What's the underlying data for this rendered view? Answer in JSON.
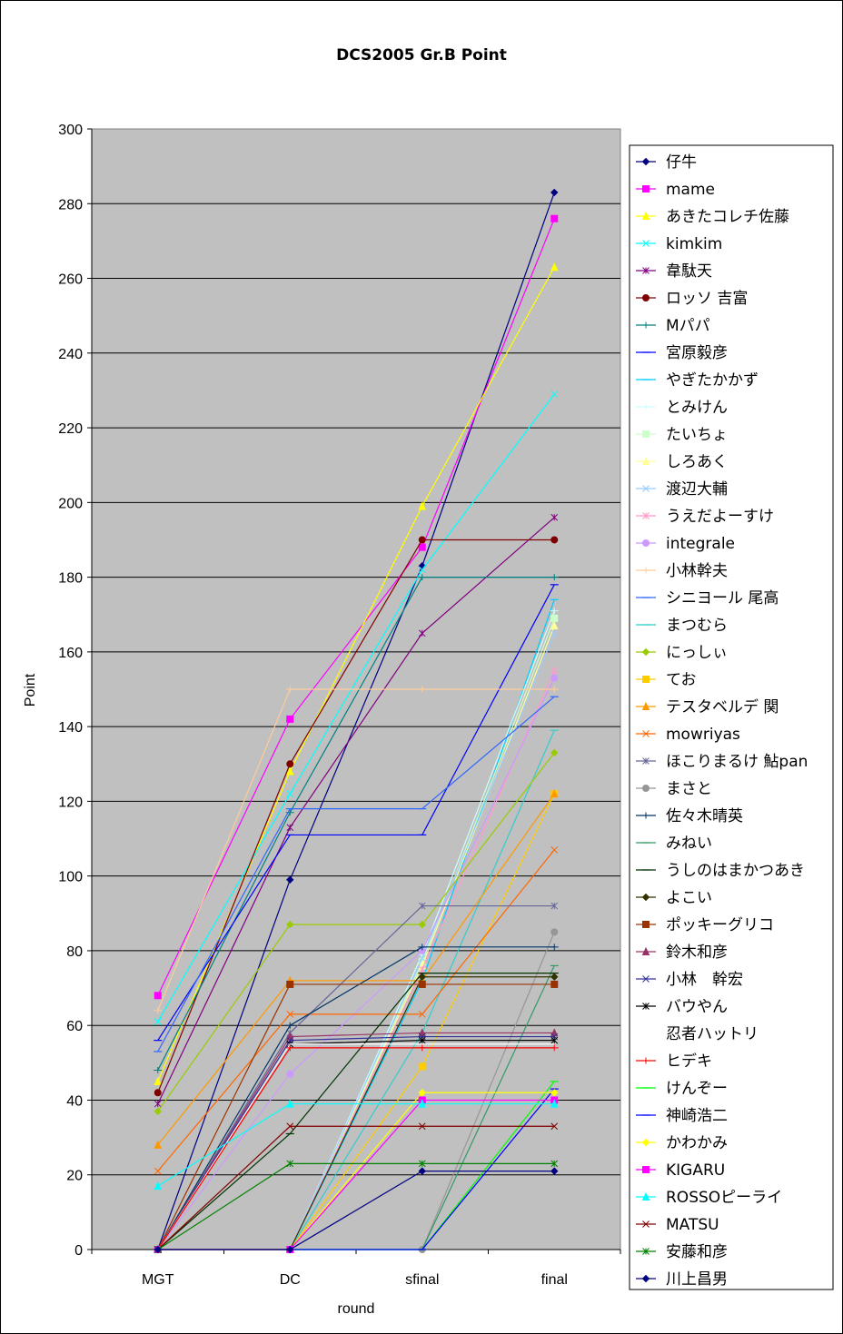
{
  "chart_data": {
    "type": "line",
    "title": "DCS2005 Gr.B Point",
    "xlabel": "round",
    "ylabel": "Point",
    "categories": [
      "MGT",
      "DC",
      "sfinal",
      "final"
    ],
    "ylim": [
      0,
      300
    ],
    "yticks": [
      0,
      20,
      40,
      60,
      80,
      100,
      120,
      140,
      160,
      180,
      200,
      220,
      240,
      260,
      280,
      300
    ],
    "grid": true,
    "legend_position": "right",
    "plot_background": "#c0c0c0",
    "series": [
      {
        "name": "仔牛",
        "color": "#000080",
        "marker": "diamond",
        "values": [
          0,
          99,
          183,
          283
        ]
      },
      {
        "name": "mame",
        "color": "#ff00ff",
        "marker": "square",
        "values": [
          68,
          142,
          188,
          276
        ]
      },
      {
        "name": "あきたコレチ佐藤",
        "color": "#ffff00",
        "marker": "triangle",
        "values": [
          45,
          128,
          199,
          263
        ]
      },
      {
        "name": "kimkim",
        "color": "#00ffff",
        "marker": "x",
        "values": [
          61,
          122,
          182,
          229
        ]
      },
      {
        "name": "韋駄天",
        "color": "#800080",
        "marker": "star",
        "values": [
          39,
          113,
          165,
          196
        ]
      },
      {
        "name": "ロッソ 吉富",
        "color": "#800000",
        "marker": "circle",
        "values": [
          42,
          130,
          190,
          190
        ]
      },
      {
        "name": "Mパパ",
        "color": "#008080",
        "marker": "plus",
        "values": [
          48,
          117,
          180,
          180
        ]
      },
      {
        "name": "宮原毅彦",
        "color": "#0000ff",
        "marker": "dash",
        "values": [
          56,
          111,
          111,
          178
        ]
      },
      {
        "name": "やぎたかかず",
        "color": "#00ccff",
        "marker": "dash",
        "values": [
          0,
          0,
          72,
          174
        ]
      },
      {
        "name": "とみけん",
        "color": "#ccffff",
        "marker": "plus",
        "values": [
          0,
          0,
          79,
          171
        ]
      },
      {
        "name": "たいちょ",
        "color": "#ccffcc",
        "marker": "square",
        "values": [
          0,
          0,
          77,
          169
        ]
      },
      {
        "name": "しろあく",
        "color": "#ffff99",
        "marker": "triangle",
        "values": [
          0,
          0,
          76,
          167
        ]
      },
      {
        "name": "渡辺大輔",
        "color": "#99ccff",
        "marker": "x",
        "values": [
          0,
          0,
          78,
          165
        ]
      },
      {
        "name": "うえだよーすけ",
        "color": "#ff99cc",
        "marker": "star",
        "values": [
          0,
          0,
          75,
          155
        ]
      },
      {
        "name": "integrale",
        "color": "#cc99ff",
        "marker": "circle",
        "values": [
          0,
          47,
          80,
          153
        ]
      },
      {
        "name": "小林幹夫",
        "color": "#ffcc99",
        "marker": "plus",
        "values": [
          64,
          150,
          150,
          150
        ]
      },
      {
        "name": "シニヨール 尾高",
        "color": "#3366ff",
        "marker": "dash",
        "values": [
          53,
          118,
          118,
          148
        ]
      },
      {
        "name": "まつむら",
        "color": "#33cccc",
        "marker": "dash",
        "values": [
          0,
          0,
          58,
          139
        ]
      },
      {
        "name": "にっしぃ",
        "color": "#99cc00",
        "marker": "diamond",
        "values": [
          37,
          87,
          87,
          133
        ]
      },
      {
        "name": "てお",
        "color": "#ffcc00",
        "marker": "square",
        "values": [
          0,
          0,
          49,
          122
        ]
      },
      {
        "name": "テスタベルデ 関",
        "color": "#ff9900",
        "marker": "triangle",
        "values": [
          28,
          72,
          72,
          122
        ]
      },
      {
        "name": "mowriyas",
        "color": "#ff6600",
        "marker": "x",
        "values": [
          21,
          63,
          63,
          107
        ]
      },
      {
        "name": "ほこりまるけ 鮎pan",
        "color": "#666699",
        "marker": "star",
        "values": [
          0,
          58,
          92,
          92
        ]
      },
      {
        "name": "まさと",
        "color": "#969696",
        "marker": "circle",
        "values": [
          0,
          0,
          0,
          85
        ]
      },
      {
        "name": "佐々木晴英",
        "color": "#003366",
        "marker": "plus",
        "values": [
          0,
          60,
          81,
          81
        ]
      },
      {
        "name": "みねい",
        "color": "#339966",
        "marker": "dash",
        "values": [
          0,
          0,
          0,
          76
        ]
      },
      {
        "name": "うしのはまかつあき",
        "color": "#003300",
        "marker": "dash",
        "values": [
          0,
          31,
          74,
          74
        ]
      },
      {
        "name": "よこい",
        "color": "#333300",
        "marker": "diamond",
        "values": [
          0,
          0,
          73,
          73
        ]
      },
      {
        "name": "ポッキーグリコ",
        "color": "#993300",
        "marker": "square",
        "values": [
          0,
          71,
          71,
          71
        ]
      },
      {
        "name": "鈴木和彦",
        "color": "#993366",
        "marker": "triangle",
        "values": [
          0,
          57,
          58,
          58
        ]
      },
      {
        "name": "小林　幹宏",
        "color": "#333399",
        "marker": "x",
        "values": [
          0,
          56,
          57,
          57
        ]
      },
      {
        "name": "バウやん",
        "color": "#000000",
        "marker": "star",
        "values": [
          0,
          55,
          56,
          56
        ]
      },
      {
        "name": "忍者ハットリ",
        "color": "#ffffff",
        "marker": "none",
        "values": [
          0,
          55,
          55,
          55
        ]
      },
      {
        "name": "ヒデキ",
        "color": "#ff0000",
        "marker": "plus",
        "values": [
          0,
          54,
          54,
          54
        ]
      },
      {
        "name": "けんぞー",
        "color": "#00ff00",
        "marker": "dash",
        "values": [
          0,
          0,
          0,
          45
        ]
      },
      {
        "name": "神崎浩二",
        "color": "#0000ff",
        "marker": "dash",
        "values": [
          0,
          0,
          0,
          43
        ]
      },
      {
        "name": "かわかみ",
        "color": "#ffff00",
        "marker": "diamond",
        "values": [
          0,
          0,
          42,
          42
        ]
      },
      {
        "name": "KIGARU",
        "color": "#ff00ff",
        "marker": "square",
        "values": [
          0,
          0,
          40,
          40
        ]
      },
      {
        "name": "ROSSOピーライ",
        "color": "#00ffff",
        "marker": "triangle",
        "values": [
          17,
          39,
          39,
          39
        ]
      },
      {
        "name": "MATSU",
        "color": "#800000",
        "marker": "x",
        "values": [
          0,
          33,
          33,
          33
        ]
      },
      {
        "name": "安藤和彦",
        "color": "#008000",
        "marker": "star",
        "values": [
          0,
          23,
          23,
          23
        ]
      },
      {
        "name": "川上昌男",
        "color": "#000080",
        "marker": "diamond",
        "values": [
          0,
          0,
          21,
          21
        ]
      }
    ]
  }
}
